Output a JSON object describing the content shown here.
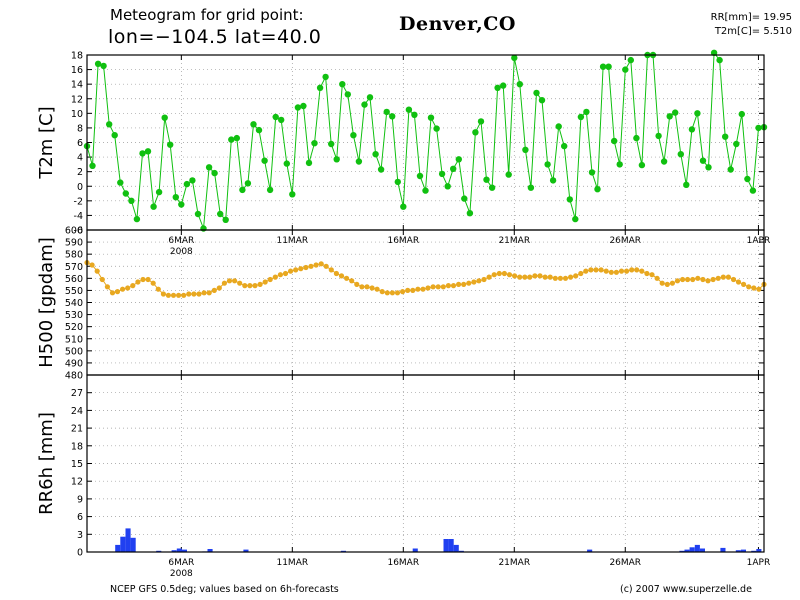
{
  "header": {
    "line1": "Meteogram for grid point:",
    "line2": "lon=−104.5 lat=40.0",
    "city": "Denver,CO",
    "rr_summary": "RR[mm]= 19.95",
    "t2m_summary": "T2m[C]= 5.510"
  },
  "footer": {
    "source": "NCEP GFS 0.5deg; values based on 6h-forecasts",
    "credit": "(c) 2007 www.superzelle.de"
  },
  "colors": {
    "t2m": "#10c010",
    "h500": "#e8a820",
    "rr": "#2040f0"
  },
  "x_axis": {
    "start": "2008-03-01 18:00",
    "end": "2008-04-01 06:00",
    "step": "6h",
    "n_points": 123,
    "ticks": [
      {
        "label": "6MAR",
        "sub": "2008",
        "index": 17
      },
      {
        "label": "11MAR",
        "sub": "",
        "index": 37
      },
      {
        "label": "16MAR",
        "sub": "",
        "index": 57
      },
      {
        "label": "21MAR",
        "sub": "",
        "index": 77
      },
      {
        "label": "26MAR",
        "sub": "",
        "index": 97
      },
      {
        "label": "1APR",
        "sub": "",
        "index": 121
      }
    ]
  },
  "chart_data": [
    {
      "type": "line",
      "ylabel": "T2m [C]",
      "ylim": [
        -6,
        18
      ],
      "yticks": [
        "-6",
        "-4",
        "-2",
        "0",
        "2",
        "4",
        "6",
        "8",
        "10",
        "12",
        "14",
        "16",
        "18"
      ],
      "grid": true,
      "series": [
        {
          "values": [
            5.5,
            2.8,
            16.8,
            16.5,
            8.5,
            7.0,
            0.5,
            -1.0,
            -2.0,
            -4.5,
            4.5,
            4.8,
            -2.8,
            -0.8,
            9.4,
            5.7,
            -1.5,
            -2.5,
            0.3,
            0.8,
            -3.8,
            -5.8,
            2.6,
            1.8,
            -3.8,
            -4.6,
            6.4,
            6.6,
            -0.5,
            0.4,
            8.5,
            7.7,
            3.5,
            -0.5,
            9.5,
            9.1,
            3.1,
            -1.1,
            10.8,
            11.0,
            3.2,
            5.9,
            13.5,
            15.0,
            5.8,
            3.7,
            14.0,
            12.6,
            7.0,
            3.4,
            11.2,
            12.2,
            4.4,
            2.3,
            10.2,
            9.6,
            0.6,
            -2.8,
            10.5,
            9.8,
            1.4,
            -0.6,
            9.4,
            7.9,
            1.7,
            0.0,
            2.4,
            3.7,
            -1.7,
            -3.7,
            7.4,
            8.9,
            0.9,
            -0.2,
            13.5,
            13.8,
            1.6,
            17.6,
            14.0,
            5.0,
            -0.2,
            12.8,
            11.8,
            3.0,
            0.8,
            8.2,
            5.5,
            -1.8,
            -4.5,
            9.5,
            10.2,
            1.9,
            -0.4,
            16.4,
            16.4,
            6.2,
            3.0,
            16.0,
            17.3,
            6.6,
            2.9,
            18.0,
            18.0,
            6.9,
            3.4,
            9.6,
            10.1,
            4.4,
            0.2,
            7.8,
            10.0,
            3.5,
            2.6,
            18.3,
            17.3,
            6.8,
            2.3,
            5.8,
            9.9,
            1.0,
            -0.6,
            8.0,
            8.1
          ]
        }
      ]
    },
    {
      "type": "line",
      "ylabel": "H500 [gpdam]",
      "ylim": [
        480,
        600
      ],
      "yticks": [
        "480",
        "490",
        "500",
        "510",
        "520",
        "530",
        "540",
        "550",
        "560",
        "570",
        "580",
        "590",
        "600"
      ],
      "grid": true,
      "series": [
        {
          "values": [
            573,
            571,
            566,
            559,
            553,
            548,
            549,
            551,
            552,
            554,
            557,
            559,
            559,
            556,
            551,
            547,
            546,
            546,
            546,
            546,
            547,
            547,
            547,
            548,
            548,
            550,
            552,
            556,
            558,
            558,
            556,
            554,
            554,
            554,
            555,
            557,
            559,
            561,
            563,
            564,
            566,
            567,
            568,
            569,
            570,
            571,
            572,
            570,
            567,
            564,
            562,
            560,
            558,
            555,
            553,
            553,
            552,
            551,
            549,
            548,
            548,
            548,
            549,
            550,
            550,
            551,
            551,
            552,
            553,
            553,
            553,
            554,
            554,
            555,
            555,
            556,
            557,
            558,
            559,
            561,
            563,
            564,
            564,
            563,
            562,
            561,
            561,
            561,
            562,
            562,
            561,
            561,
            560,
            560,
            560,
            561,
            562,
            564,
            566,
            567,
            567,
            567,
            566,
            565,
            565,
            566,
            566,
            567,
            567,
            566,
            564,
            563,
            560,
            556,
            555,
            556,
            558,
            559,
            559,
            559,
            560,
            559,
            558,
            559,
            560,
            561,
            561,
            559,
            557,
            555,
            553,
            552,
            551,
            555
          ]
        }
      ]
    },
    {
      "type": "bar",
      "ylabel": "RR6h [mm]",
      "ylim": [
        0,
        30
      ],
      "yticks": [
        "0",
        "3",
        "6",
        "9",
        "12",
        "15",
        "18",
        "21",
        "24",
        "27"
      ],
      "grid": true,
      "series": [
        {
          "values": [
            0,
            0,
            0,
            0,
            0,
            0,
            1.2,
            2.6,
            4.0,
            2.4,
            0,
            0,
            0,
            0,
            0.2,
            0,
            0,
            0.3,
            0.6,
            0.4,
            0,
            0,
            0,
            0.1,
            0.5,
            0,
            0,
            0,
            0,
            0,
            0,
            0.4,
            0,
            0,
            0,
            0,
            0,
            0,
            0,
            0,
            0,
            0,
            0,
            0,
            0,
            0,
            0,
            0,
            0,
            0,
            0.2,
            0,
            0,
            0,
            0,
            0,
            0,
            0,
            0,
            0,
            0,
            0,
            0,
            0,
            0.6,
            0,
            0,
            0,
            0,
            0,
            2.2,
            2.2,
            1.2,
            0.2,
            0,
            0,
            0,
            0,
            0,
            0,
            0,
            0,
            0,
            0,
            0,
            0,
            0,
            0,
            0,
            0,
            0,
            0,
            0,
            0,
            0,
            0,
            0,
            0,
            0.4,
            0,
            0,
            0,
            0,
            0,
            0,
            0,
            0,
            0,
            0,
            0,
            0,
            0,
            0,
            0,
            0,
            0,
            0.2,
            0.4,
            0.8,
            1.2,
            0.6,
            0,
            0,
            0,
            0.7,
            0,
            0,
            0.3,
            0.4,
            0,
            0.2,
            0.5,
            0
          ]
        }
      ]
    }
  ]
}
